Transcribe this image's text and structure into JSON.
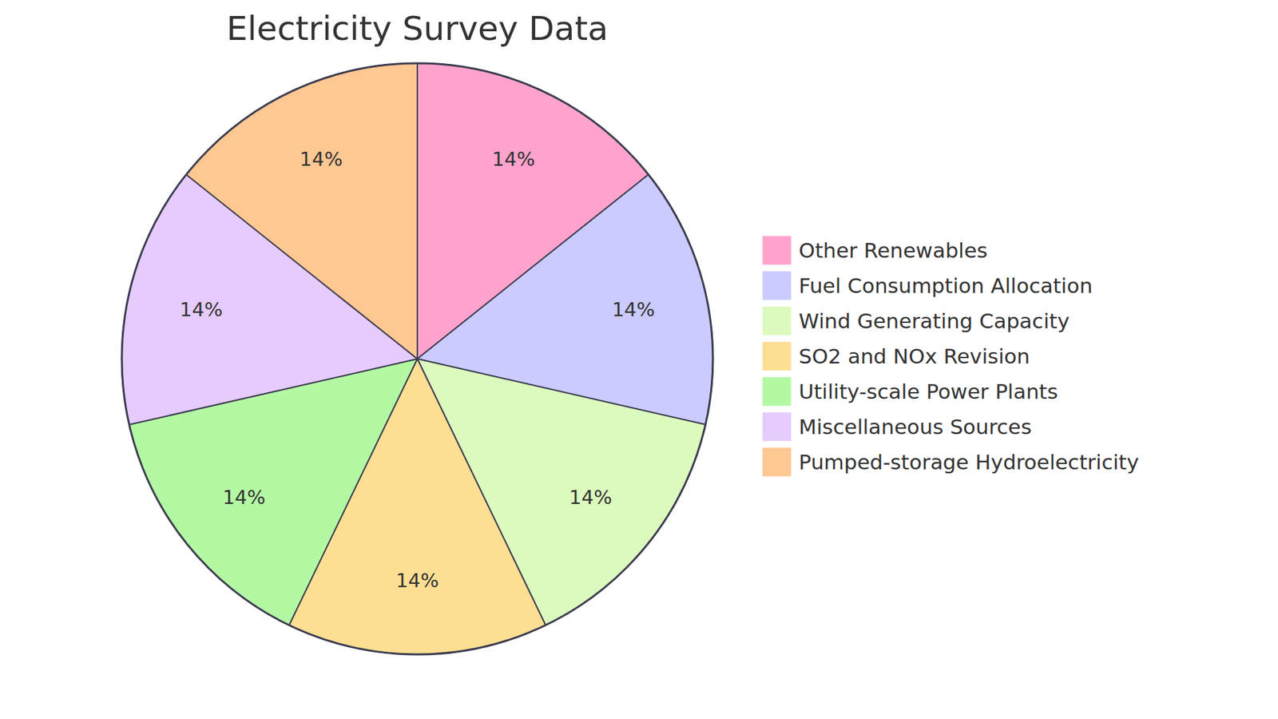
{
  "chart_data": {
    "type": "pie",
    "title": "Electricity Survey Data",
    "categories": [
      "Other Renewables",
      "Fuel Consumption Allocation",
      "Wind Generating Capacity",
      "SO2 and NOx Revision",
      "Utility-scale Power Plants",
      "Miscellaneous Sources",
      "Pumped-storage Hydroelectricity"
    ],
    "values": [
      14,
      14,
      14,
      14,
      14,
      14,
      14
    ],
    "value_labels": [
      "14%",
      "14%",
      "14%",
      "14%",
      "14%",
      "14%",
      "14%"
    ],
    "colors": [
      "#ffa3cc",
      "#cbcbff",
      "#dcf9be",
      "#fddf93",
      "#b3f9a3",
      "#e6cbfd",
      "#ffc792"
    ],
    "data_labels": true,
    "legend": "right"
  }
}
